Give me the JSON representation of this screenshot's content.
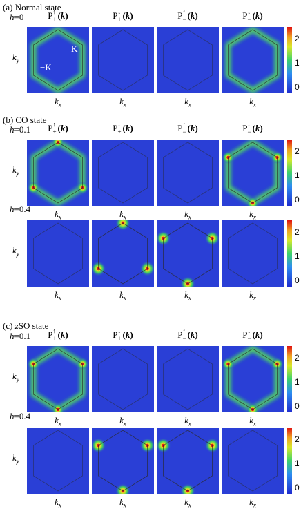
{
  "sections": [
    {
      "id": "a",
      "title_prefix": "(a) ",
      "title_main": "Normal state"
    },
    {
      "id": "b",
      "title_prefix": "(b) ",
      "title_main": "CO state"
    },
    {
      "id": "c",
      "title_prefix": "(c) ",
      "title_em": "z",
      "title_main": "SO state"
    }
  ],
  "panel_titles": [
    {
      "p": "P",
      "sup": "↑",
      "sub": "+",
      "arg": "(k)"
    },
    {
      "p": "P",
      "sup": "↓",
      "sub": "+",
      "arg": "(k)"
    },
    {
      "p": "P",
      "sup": "↑",
      "sub": "−",
      "arg": "(k)"
    },
    {
      "p": "P",
      "sup": "↓",
      "sub": "−",
      "arg": "(k)"
    }
  ],
  "rows": [
    {
      "h_label": "h",
      "h_value": "=0"
    },
    {
      "h_label": "h",
      "h_value": "=0.1"
    },
    {
      "h_label": "h",
      "h_value": "=0.4"
    },
    {
      "h_label": "h",
      "h_value": "=0.1"
    },
    {
      "h_label": "h",
      "h_value": "=0.4"
    }
  ],
  "axis": {
    "ky": "k",
    "ky_sub": "y",
    "kx": "k",
    "kx_sub": "x"
  },
  "k_labels": {
    "K": "K",
    "mK": "−K"
  },
  "colorbar_ticks": [
    "2",
    "1",
    "0"
  ],
  "colors": {
    "low": "#2a3fd6",
    "mid": "#2fd06a",
    "high": "#e8e020",
    "peak": "#e01818",
    "hex_line": "#2a2a2a"
  },
  "panel_patterns": [
    [
      "hexglow",
      "faint",
      "faint",
      "hexglow"
    ],
    [
      "hexpeaks-up",
      "faint",
      "faint",
      "hexpeaks-down"
    ],
    [
      "faint",
      "peaks-up",
      "peaks-down",
      "faint"
    ],
    [
      "hexpeaks-down",
      "faint",
      "faint",
      "hexpeaks-down"
    ],
    [
      "faint",
      "peaks-down",
      "peaks-down",
      "faint"
    ]
  ]
}
